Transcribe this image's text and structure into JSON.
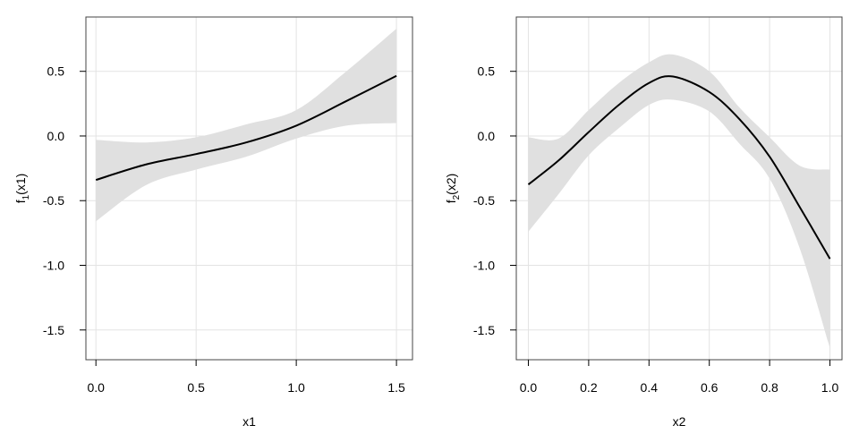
{
  "chart_data": [
    {
      "type": "line",
      "xlabel": "x1",
      "ylabel": {
        "base": "f",
        "sub": "1",
        "rest": "(x1)"
      },
      "xlim": [
        -0.05,
        1.58
      ],
      "ylim": [
        -1.73,
        0.92
      ],
      "xticks": [
        0.0,
        0.5,
        1.0,
        1.5
      ],
      "xtick_labels": [
        "0.0",
        "0.5",
        "1.0",
        "1.5"
      ],
      "yticks": [
        0.5,
        0.0,
        -0.5,
        -1.0,
        -1.5
      ],
      "ytick_labels": [
        "0.5",
        "0.0",
        "-0.5",
        "-1.0",
        "-1.5"
      ],
      "grid": true,
      "line_color": "#000000",
      "band_color": "#e0e0e0",
      "x": [
        0.0,
        0.25,
        0.5,
        0.75,
        1.0,
        1.25,
        1.5
      ],
      "fit": [
        -0.34,
        -0.22,
        -0.14,
        -0.05,
        0.08,
        0.27,
        0.465
      ],
      "lower": [
        -0.66,
        -0.38,
        -0.26,
        -0.16,
        -0.02,
        0.08,
        0.1
      ],
      "upper": [
        -0.03,
        -0.05,
        -0.01,
        0.09,
        0.2,
        0.5,
        0.83
      ]
    },
    {
      "type": "line",
      "xlabel": "x2",
      "ylabel": {
        "base": "f",
        "sub": "2",
        "rest": "(x2)"
      },
      "xlim": [
        -0.04,
        1.04
      ],
      "ylim": [
        -1.73,
        0.92
      ],
      "xticks": [
        0.0,
        0.2,
        0.4,
        0.6,
        0.8,
        1.0
      ],
      "xtick_labels": [
        "0.0",
        "0.2",
        "0.4",
        "0.6",
        "0.8",
        "1.0"
      ],
      "yticks": [
        0.5,
        0.0,
        -0.5,
        -1.0,
        -1.5
      ],
      "ytick_labels": [
        "0.5",
        "0.0",
        "-0.5",
        "-1.0",
        "-1.5"
      ],
      "grid": true,
      "line_color": "#000000",
      "band_color": "#e0e0e0",
      "x": [
        0.0,
        0.1,
        0.2,
        0.3,
        0.4,
        0.48,
        0.6,
        0.7,
        0.8,
        0.9,
        1.0
      ],
      "fit": [
        -0.375,
        -0.19,
        0.03,
        0.24,
        0.41,
        0.46,
        0.34,
        0.13,
        -0.16,
        -0.55,
        -0.95
      ],
      "lower": [
        -0.74,
        -0.45,
        -0.15,
        0.06,
        0.24,
        0.28,
        0.19,
        -0.06,
        -0.33,
        -0.87,
        -1.64
      ],
      "upper": [
        -0.01,
        -0.02,
        0.2,
        0.41,
        0.57,
        0.63,
        0.5,
        0.22,
        -0.01,
        -0.23,
        -0.26
      ]
    }
  ]
}
